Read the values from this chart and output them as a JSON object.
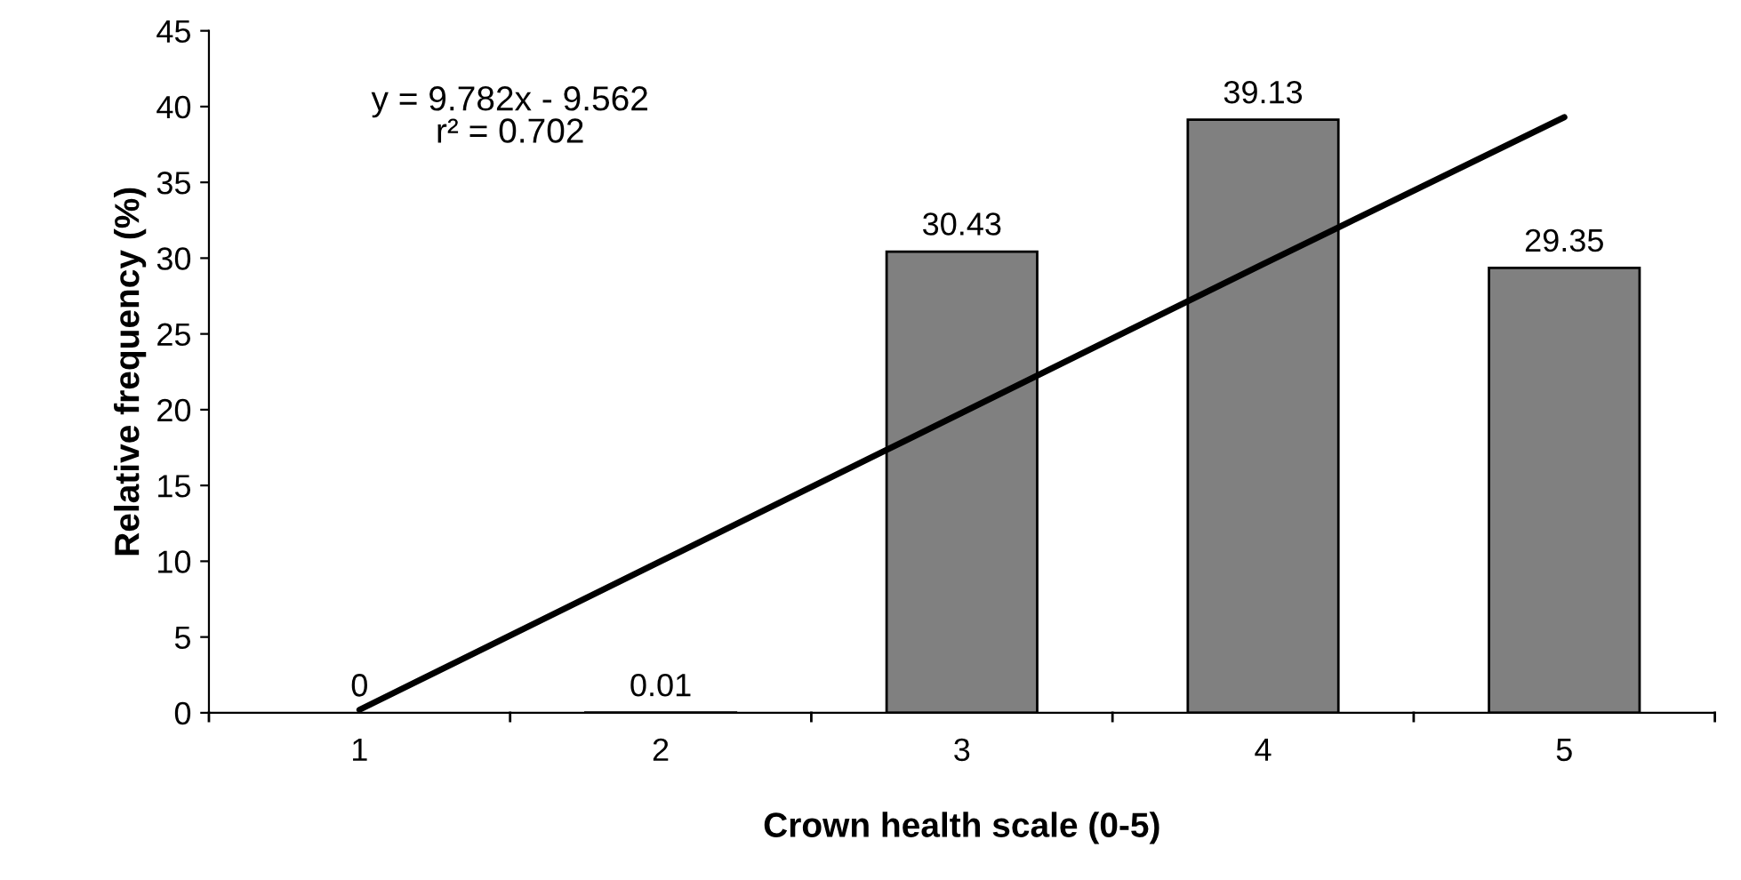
{
  "chart_data": {
    "type": "bar",
    "xlabel": "Crown health scale (0-5)",
    "ylabel": "Relative frequency (%)",
    "categories": [
      "1",
      "2",
      "3",
      "4",
      "5"
    ],
    "series": [
      {
        "color": "#808080",
        "values": [
          0,
          0.01,
          30.43,
          39.13,
          29.35
        ],
        "value_labels": [
          "0",
          "0.01",
          "30.43",
          "39.13",
          "29.35"
        ]
      },
      {
        "type": "line",
        "color": "#000000",
        "values": [
          0.2,
          10.0,
          19.8,
          29.6,
          39.3
        ]
      }
    ],
    "annotations": [
      "y = 9.782x - 9.562",
      "r² = 0.702"
    ],
    "ylim": [
      0,
      45
    ],
    "yticks": [
      0,
      5,
      10,
      15,
      20,
      25,
      30,
      35,
      40,
      45
    ],
    "grid": false,
    "legend": false
  }
}
